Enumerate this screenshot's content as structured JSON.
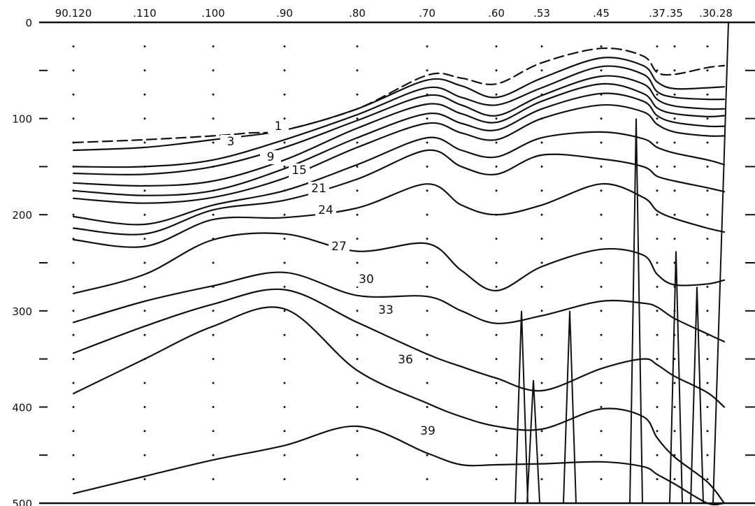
{
  "chart_data": {
    "type": "line",
    "title": "",
    "xlabel": "",
    "ylabel": "",
    "ylim": [
      0,
      500
    ],
    "yticks": [
      0,
      100,
      200,
      300,
      400,
      500
    ],
    "x_station_labels": [
      {
        "label": "90.120",
        "x": 120
      },
      {
        "label": ".110",
        "x": 110
      },
      {
        "label": ".100",
        "x": 100
      },
      {
        "label": ".90",
        "x": 90
      },
      {
        "label": ".80",
        "x": 80
      },
      {
        "label": ".70",
        "x": 70
      },
      {
        "label": ".60",
        "x": 60
      },
      {
        "label": ".53",
        "x": 53
      },
      {
        "label": ".45",
        "x": 45
      },
      {
        "label": ".37",
        "x": 37
      },
      {
        "label": ".35",
        "x": 35
      },
      {
        "label": ".30",
        "x": 30
      },
      {
        "label": ".28",
        "x": 28
      }
    ],
    "x_labels": [
      "90.120",
      ".110",
      ".100",
      ".90",
      ".80",
      ".70",
      ".60",
      ".53",
      ".45",
      ".37",
      ".35",
      ".30",
      ".28"
    ],
    "y_labels": [
      "0",
      "100",
      "200",
      "300",
      "400",
      "500"
    ],
    "contour_labels": [
      "1",
      "3",
      "9",
      "15",
      "21",
      "24",
      "27",
      "30",
      "33",
      "36",
      "39"
    ],
    "series": [
      {
        "name": "1",
        "dashed": true,
        "x": [
          120,
          110,
          100,
          95,
          90,
          80,
          70,
          65,
          60,
          53,
          45,
          40,
          37,
          35,
          30,
          28
        ],
        "y": [
          125,
          122,
          118,
          115,
          112,
          90,
          55,
          58,
          64,
          42,
          27,
          35,
          52,
          54,
          47,
          45
        ]
      },
      {
        "name": "3",
        "x": [
          120,
          110,
          100,
          90,
          80,
          70,
          65,
          60,
          53,
          45,
          40,
          37,
          35,
          30,
          28
        ],
        "y": [
          133,
          130,
          122,
          112,
          90,
          60,
          66,
          78,
          58,
          37,
          45,
          62,
          69,
          68,
          67
        ]
      },
      {
        "name": "",
        "x": [
          120,
          110,
          100,
          90,
          80,
          70,
          65,
          60,
          53,
          45,
          40,
          37,
          35,
          30,
          28
        ],
        "y": [
          150,
          150,
          143,
          122,
          96,
          68,
          78,
          86,
          68,
          46,
          54,
          72,
          78,
          80,
          80
        ]
      },
      {
        "name": "9",
        "x": [
          120,
          110,
          100,
          90,
          80,
          70,
          65,
          60,
          53,
          45,
          40,
          37,
          35,
          30,
          28
        ],
        "y": [
          157,
          158,
          150,
          130,
          102,
          76,
          86,
          97,
          76,
          56,
          64,
          80,
          87,
          90,
          90
        ]
      },
      {
        "name": "",
        "x": [
          120,
          110,
          100,
          90,
          80,
          70,
          65,
          60,
          53,
          45,
          40,
          37,
          35,
          30,
          28
        ],
        "y": [
          167,
          170,
          165,
          143,
          110,
          85,
          95,
          104,
          82,
          64,
          74,
          89,
          95,
          98,
          97
        ]
      },
      {
        "name": "15",
        "x": [
          120,
          110,
          100,
          90,
          80,
          70,
          65,
          60,
          53,
          45,
          40,
          37,
          35,
          30,
          28
        ],
        "y": [
          175,
          180,
          175,
          152,
          120,
          95,
          105,
          112,
          90,
          74,
          82,
          97,
          104,
          108,
          108
        ]
      },
      {
        "name": "",
        "x": [
          120,
          110,
          100,
          90,
          80,
          70,
          65,
          60,
          53,
          45,
          40,
          37,
          35,
          30,
          28
        ],
        "y": [
          183,
          188,
          182,
          162,
          130,
          105,
          115,
          122,
          100,
          86,
          93,
          106,
          114,
          118,
          118
        ]
      },
      {
        "name": "21",
        "x": [
          120,
          110,
          100,
          90,
          80,
          70,
          65,
          60,
          53,
          45,
          40,
          37,
          35,
          30,
          28
        ],
        "y": [
          202,
          210,
          190,
          175,
          148,
          120,
          133,
          140,
          120,
          114,
          121,
          130,
          136,
          143,
          148
        ]
      },
      {
        "name": "",
        "x": [
          120,
          110,
          100,
          90,
          80,
          70,
          65,
          60,
          53,
          45,
          40,
          37,
          35,
          30,
          28
        ],
        "y": [
          214,
          220,
          195,
          185,
          163,
          133,
          150,
          158,
          138,
          142,
          150,
          160,
          165,
          172,
          176
        ]
      },
      {
        "name": "24",
        "x": [
          120,
          110,
          100,
          90,
          80,
          70,
          65,
          60,
          53,
          45,
          40,
          37,
          35,
          30,
          28
        ],
        "y": [
          226,
          233,
          205,
          203,
          193,
          168,
          190,
          200,
          190,
          168,
          182,
          196,
          204,
          214,
          218
        ]
      },
      {
        "name": "27",
        "x": [
          120,
          110,
          100,
          90,
          80,
          70,
          65,
          60,
          53,
          45,
          40,
          37,
          35,
          30,
          28
        ],
        "y": [
          282,
          262,
          226,
          220,
          238,
          230,
          258,
          279,
          254,
          236,
          242,
          262,
          273,
          272,
          268
        ]
      },
      {
        "name": "30",
        "x": [
          120,
          110,
          100,
          90,
          80,
          70,
          65,
          60,
          53,
          45,
          40,
          37,
          35,
          30,
          28
        ],
        "y": [
          312,
          290,
          274,
          260,
          284,
          285,
          300,
          313,
          305,
          290,
          292,
          296,
          308,
          324,
          332
        ]
      },
      {
        "name": "33",
        "x": [
          120,
          110,
          100,
          90,
          80,
          70,
          65,
          60,
          53,
          45,
          40,
          37,
          35,
          30,
          28
        ],
        "y": [
          344,
          316,
          293,
          278,
          312,
          345,
          358,
          370,
          383,
          360,
          350,
          356,
          368,
          385,
          400
        ]
      },
      {
        "name": "36",
        "x": [
          120,
          110,
          100,
          90,
          80,
          70,
          65,
          60,
          53,
          45,
          40,
          37,
          35,
          30,
          28
        ],
        "y": [
          386,
          350,
          316,
          298,
          362,
          396,
          410,
          420,
          423,
          402,
          410,
          432,
          452,
          478,
          500
        ]
      },
      {
        "name": "39",
        "x": [
          120,
          110,
          100,
          90,
          80,
          70,
          65,
          60,
          53,
          45,
          40,
          37,
          35,
          30,
          28
        ],
        "y": [
          490,
          472,
          455,
          440,
          420,
          448,
          460,
          460,
          459,
          457,
          462,
          470,
          480,
          500,
          500
        ]
      }
    ],
    "spikes": [
      {
        "x": 57,
        "top": 300
      },
      {
        "x": 56,
        "top": 372
      },
      {
        "x": 52,
        "top": 300
      },
      {
        "x": 41,
        "top": 100
      },
      {
        "x": 36,
        "top": 238
      },
      {
        "x": 32,
        "top": 275
      }
    ],
    "grid": "dotted station markers"
  }
}
